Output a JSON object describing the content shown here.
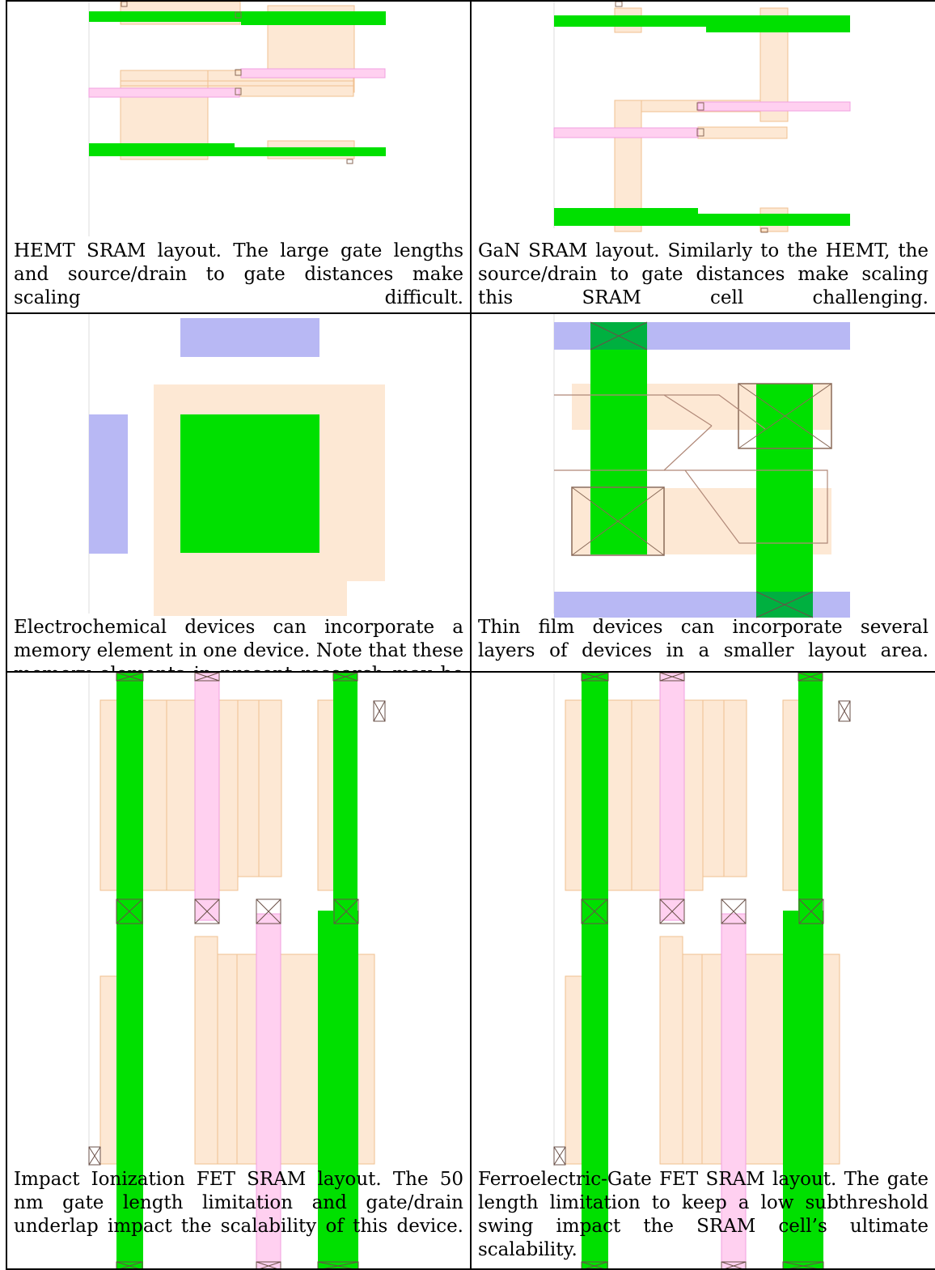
{
  "panels": [
    {
      "id": "hemt",
      "caption": "HEMT SRAM layout. The large gate lengths and source/drain to gate distances make scaling difficult."
    },
    {
      "id": "gan",
      "caption": "GaN SRAM layout. Similarly to the HEMT, the source/drain to gate distances make scaling this SRAM cell challenging."
    },
    {
      "id": "electrochemical",
      "caption": "Electrochemical devices can incorporate a memory element in one device. Note that these memory elements in present research may be much slower than current SRAM technology."
    },
    {
      "id": "thinfilm",
      "caption": "Thin film devices can incorporate several layers of devices in a smaller layout area."
    },
    {
      "id": "iifet",
      "caption": "Impact Ionization FET SRAM layout. The 50 nm gate length limitation and gate/drain underlap impact the scalability of this device."
    },
    {
      "id": "fefet",
      "caption": "Ferroelectric-Gate FET SRAM layout. The gate length limitation to keep a low subthreshold swing impact the SRAM cell’s ultimate scalability."
    }
  ],
  "colors": {
    "diffusion": "#fde8d4",
    "diffusion_edge": "#f0c090",
    "active": "#00e000",
    "poly": "#ffd0f0",
    "metal": "#b8b8f4",
    "contact": "#8a6a58"
  }
}
